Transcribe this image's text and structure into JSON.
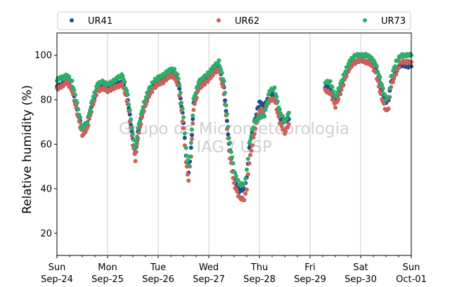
{
  "chart_data": {
    "type": "scatter",
    "ylabel": "Relative humidity (%)",
    "xlabel": "",
    "ylim": [
      10,
      110
    ],
    "xlim": [
      0,
      7
    ],
    "grid": "x-only",
    "legend_position": "top",
    "yticks": [
      20,
      40,
      60,
      80,
      100
    ],
    "xticks": [
      {
        "x": 0,
        "day": "Sun",
        "date": "Sep-24"
      },
      {
        "x": 1,
        "day": "Mon",
        "date": "Sep-25"
      },
      {
        "x": 2,
        "day": "Tue",
        "date": "Sep-26"
      },
      {
        "x": 3,
        "day": "Wed",
        "date": "Sep-27"
      },
      {
        "x": 4,
        "day": "Thu",
        "date": "Sep-28"
      },
      {
        "x": 5,
        "day": "Fri",
        "date": "Sep-29"
      },
      {
        "x": 6,
        "day": "Sat",
        "date": "Sep-30"
      },
      {
        "x": 7,
        "day": "Sun",
        "date": "Oct-01"
      }
    ],
    "minor_xticks_per_day": 4,
    "watermark": [
      "Grupo de Micrometeorologia",
      "IAG / USP"
    ],
    "series": [
      {
        "name": "UR41",
        "color": "#1f4e8c",
        "points": [
          [
            0.0,
            86
          ],
          [
            0.1,
            87
          ],
          [
            0.2,
            88
          ],
          [
            0.3,
            85
          ],
          [
            0.4,
            75
          ],
          [
            0.5,
            67
          ],
          [
            0.6,
            70
          ],
          [
            0.7,
            78
          ],
          [
            0.8,
            85
          ],
          [
            0.9,
            86
          ],
          [
            1.0,
            85
          ],
          [
            1.1,
            86
          ],
          [
            1.2,
            87
          ],
          [
            1.3,
            88
          ],
          [
            1.4,
            80
          ],
          [
            1.5,
            62
          ],
          [
            1.55,
            56
          ],
          [
            1.6,
            65
          ],
          [
            1.7,
            75
          ],
          [
            1.8,
            82
          ],
          [
            1.9,
            86
          ],
          [
            2.0,
            88
          ],
          [
            2.1,
            89
          ],
          [
            2.2,
            91
          ],
          [
            2.3,
            92
          ],
          [
            2.4,
            88
          ],
          [
            2.5,
            70
          ],
          [
            2.55,
            55
          ],
          [
            2.6,
            47
          ],
          [
            2.65,
            58
          ],
          [
            2.7,
            78
          ],
          [
            2.8,
            86
          ],
          [
            2.9,
            88
          ],
          [
            3.0,
            90
          ],
          [
            3.1,
            93
          ],
          [
            3.2,
            95
          ],
          [
            3.3,
            85
          ],
          [
            3.4,
            60
          ],
          [
            3.5,
            45
          ],
          [
            3.6,
            39
          ],
          [
            3.7,
            40
          ],
          [
            3.75,
            45
          ],
          [
            3.8,
            58
          ],
          [
            3.9,
            70
          ],
          [
            4.0,
            79
          ],
          [
            4.1,
            77
          ],
          [
            4.2,
            83
          ],
          [
            4.3,
            82
          ],
          [
            4.4,
            72
          ],
          [
            4.5,
            70
          ],
          [
            4.6,
            72
          ],
          [
            5.3,
            86
          ],
          [
            5.4,
            85
          ],
          [
            5.5,
            79
          ],
          [
            5.6,
            85
          ],
          [
            5.7,
            91
          ],
          [
            5.8,
            96
          ],
          [
            5.9,
            97
          ],
          [
            6.0,
            98
          ],
          [
            6.1,
            97
          ],
          [
            6.2,
            97
          ],
          [
            6.3,
            94
          ],
          [
            6.4,
            85
          ],
          [
            6.5,
            79
          ],
          [
            6.55,
            80
          ],
          [
            6.6,
            88
          ],
          [
            6.7,
            93
          ],
          [
            6.8,
            96
          ],
          [
            6.9,
            95
          ],
          [
            7.0,
            95
          ]
        ]
      },
      {
        "name": "UR62",
        "color": "#cd5f5a",
        "points": [
          [
            0.0,
            85
          ],
          [
            0.1,
            86
          ],
          [
            0.2,
            88
          ],
          [
            0.3,
            84
          ],
          [
            0.4,
            74
          ],
          [
            0.5,
            64
          ],
          [
            0.6,
            67
          ],
          [
            0.7,
            77
          ],
          [
            0.8,
            84
          ],
          [
            0.9,
            85
          ],
          [
            1.0,
            84
          ],
          [
            1.1,
            85
          ],
          [
            1.2,
            86
          ],
          [
            1.3,
            87
          ],
          [
            1.4,
            78
          ],
          [
            1.5,
            60
          ],
          [
            1.55,
            53
          ],
          [
            1.6,
            63
          ],
          [
            1.7,
            74
          ],
          [
            1.8,
            81
          ],
          [
            1.9,
            85
          ],
          [
            2.0,
            87
          ],
          [
            2.1,
            88
          ],
          [
            2.2,
            90
          ],
          [
            2.3,
            91
          ],
          [
            2.4,
            86
          ],
          [
            2.5,
            67
          ],
          [
            2.55,
            52
          ],
          [
            2.6,
            44
          ],
          [
            2.65,
            55
          ],
          [
            2.7,
            76
          ],
          [
            2.8,
            85
          ],
          [
            2.9,
            87
          ],
          [
            3.0,
            89
          ],
          [
            3.1,
            92
          ],
          [
            3.2,
            94
          ],
          [
            3.3,
            83
          ],
          [
            3.4,
            57
          ],
          [
            3.5,
            42
          ],
          [
            3.6,
            36
          ],
          [
            3.7,
            35
          ],
          [
            3.75,
            40
          ],
          [
            3.8,
            52
          ],
          [
            3.9,
            65
          ],
          [
            4.0,
            75
          ],
          [
            4.1,
            75
          ],
          [
            4.2,
            80
          ],
          [
            4.3,
            80
          ],
          [
            4.4,
            70
          ],
          [
            4.5,
            65
          ],
          [
            4.6,
            70
          ],
          [
            5.3,
            84
          ],
          [
            5.4,
            83
          ],
          [
            5.5,
            77
          ],
          [
            5.6,
            83
          ],
          [
            5.7,
            90
          ],
          [
            5.8,
            95
          ],
          [
            5.9,
            97
          ],
          [
            6.0,
            98
          ],
          [
            6.1,
            97
          ],
          [
            6.2,
            96
          ],
          [
            6.3,
            92
          ],
          [
            6.4,
            82
          ],
          [
            6.5,
            75
          ],
          [
            6.55,
            76
          ],
          [
            6.6,
            86
          ],
          [
            6.7,
            92
          ],
          [
            6.8,
            97
          ],
          [
            6.9,
            97
          ],
          [
            7.0,
            97
          ]
        ]
      },
      {
        "name": "UR73",
        "color": "#2eac6a",
        "points": [
          [
            0.0,
            89
          ],
          [
            0.1,
            90
          ],
          [
            0.2,
            91
          ],
          [
            0.3,
            88
          ],
          [
            0.4,
            78
          ],
          [
            0.5,
            67
          ],
          [
            0.6,
            70
          ],
          [
            0.7,
            80
          ],
          [
            0.8,
            87
          ],
          [
            0.9,
            88
          ],
          [
            1.0,
            87
          ],
          [
            1.1,
            88
          ],
          [
            1.2,
            90
          ],
          [
            1.3,
            91
          ],
          [
            1.4,
            82
          ],
          [
            1.5,
            64
          ],
          [
            1.55,
            58
          ],
          [
            1.6,
            67
          ],
          [
            1.7,
            77
          ],
          [
            1.8,
            84
          ],
          [
            1.9,
            88
          ],
          [
            2.0,
            90
          ],
          [
            2.1,
            91
          ],
          [
            2.2,
            93
          ],
          [
            2.3,
            94
          ],
          [
            2.4,
            90
          ],
          [
            2.5,
            72
          ],
          [
            2.55,
            58
          ],
          [
            2.6,
            50
          ],
          [
            2.65,
            60
          ],
          [
            2.7,
            80
          ],
          [
            2.8,
            88
          ],
          [
            2.9,
            90
          ],
          [
            3.0,
            92
          ],
          [
            3.1,
            95
          ],
          [
            3.2,
            97
          ],
          [
            3.3,
            88
          ],
          [
            3.4,
            63
          ],
          [
            3.5,
            48
          ],
          [
            3.6,
            42
          ],
          [
            3.7,
            42
          ],
          [
            3.75,
            48
          ],
          [
            3.8,
            60
          ],
          [
            3.9,
            70
          ],
          [
            4.0,
            72
          ],
          [
            4.1,
            73
          ],
          [
            4.2,
            84
          ],
          [
            4.3,
            85
          ],
          [
            4.4,
            75
          ],
          [
            4.5,
            70
          ],
          [
            4.6,
            75
          ],
          [
            5.3,
            88
          ],
          [
            5.4,
            88
          ],
          [
            5.5,
            81
          ],
          [
            5.6,
            87
          ],
          [
            5.7,
            93
          ],
          [
            5.8,
            98
          ],
          [
            5.9,
            100
          ],
          [
            6.0,
            100
          ],
          [
            6.1,
            100
          ],
          [
            6.2,
            99
          ],
          [
            6.3,
            96
          ],
          [
            6.4,
            88
          ],
          [
            6.5,
            80
          ],
          [
            6.55,
            81
          ],
          [
            6.6,
            90
          ],
          [
            6.7,
            97
          ],
          [
            6.8,
            100
          ],
          [
            6.9,
            100
          ],
          [
            7.0,
            100
          ]
        ]
      }
    ]
  }
}
